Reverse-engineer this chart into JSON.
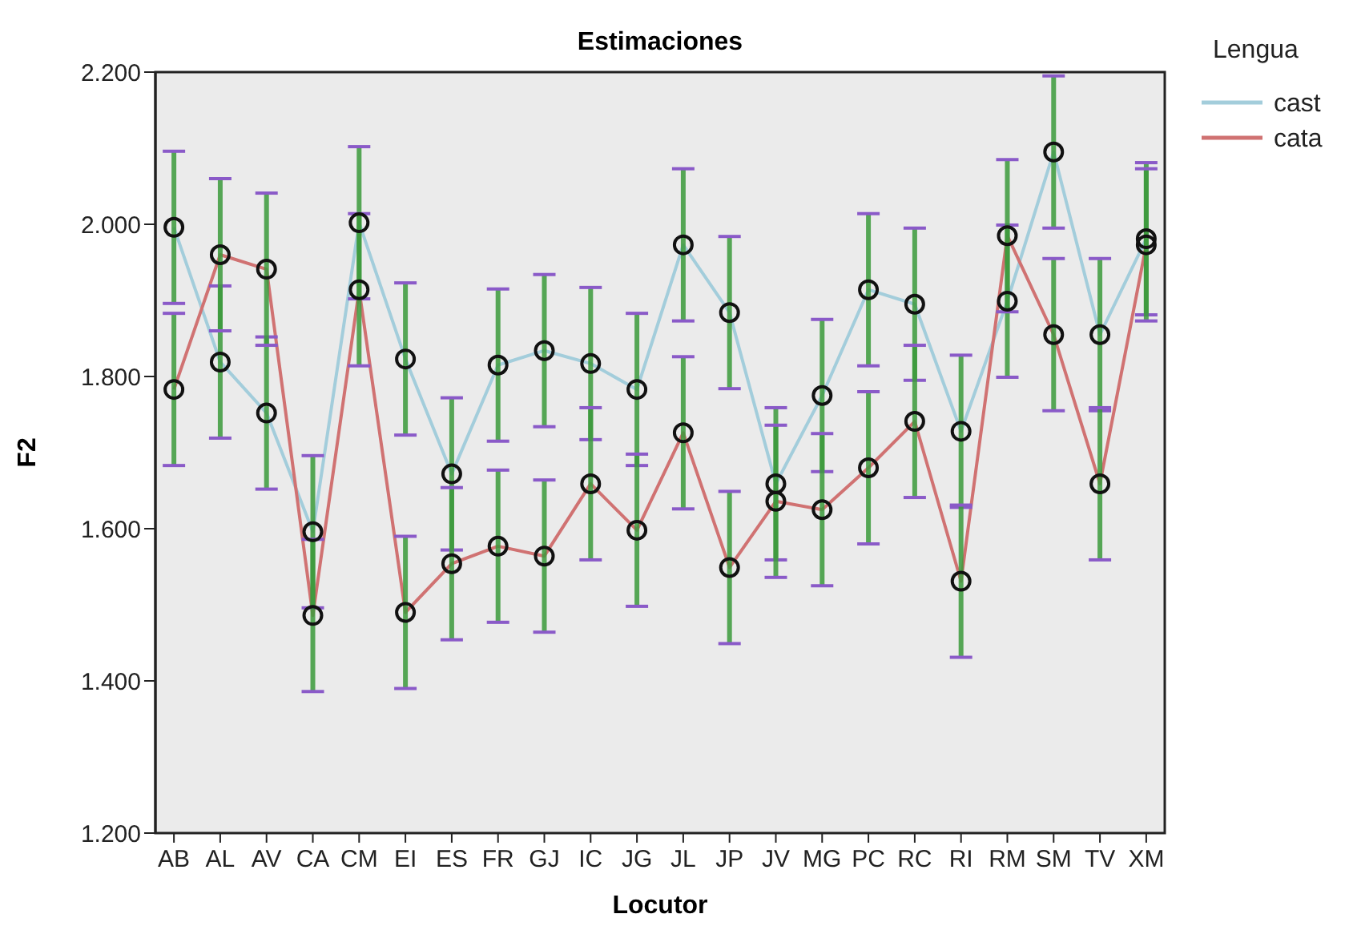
{
  "chart_data": {
    "type": "line",
    "title": "Estimaciones",
    "xlabel": "Locutor",
    "ylabel": "F2",
    "legend_title": "Lengua",
    "categories": [
      "AB",
      "AL",
      "AV",
      "CA",
      "CM",
      "EI",
      "ES",
      "FR",
      "GJ",
      "IC",
      "JG",
      "JL",
      "JP",
      "JV",
      "MG",
      "PC",
      "RC",
      "RI",
      "RM",
      "SM",
      "TV",
      "XM"
    ],
    "series": [
      {
        "name": "cast",
        "color": "#a3cddb",
        "values": [
          1.996,
          1.819,
          1.752,
          1.596,
          2.002,
          1.823,
          1.672,
          1.815,
          1.834,
          1.817,
          1.783,
          1.973,
          1.884,
          1.659,
          1.775,
          1.914,
          1.895,
          1.728,
          1.899,
          2.095,
          1.855,
          1.981
        ],
        "errors": [
          0.1,
          0.1,
          0.1,
          0.1,
          0.1,
          0.1,
          0.1,
          0.1,
          0.1,
          0.1,
          0.1,
          0.1,
          0.1,
          0.1,
          0.1,
          0.1,
          0.1,
          0.1,
          0.1,
          0.1,
          0.1,
          0.1
        ]
      },
      {
        "name": "cata",
        "color": "#d07272",
        "values": [
          1.783,
          1.96,
          1.941,
          1.486,
          1.914,
          1.49,
          1.554,
          1.577,
          1.564,
          1.659,
          1.598,
          1.726,
          1.549,
          1.636,
          1.625,
          1.68,
          1.741,
          1.531,
          1.985,
          1.855,
          1.659,
          1.973
        ],
        "errors": [
          0.1,
          0.1,
          0.1,
          0.1,
          0.1,
          0.1,
          0.1,
          0.1,
          0.1,
          0.1,
          0.1,
          0.1,
          0.1,
          0.1,
          0.1,
          0.1,
          0.1,
          0.1,
          0.1,
          0.1,
          0.1,
          0.1
        ]
      }
    ],
    "ylim": [
      1.2,
      2.2
    ],
    "yticks": [
      {
        "value": 1.2,
        "label": "1.200"
      },
      {
        "value": 1.4,
        "label": "1.400"
      },
      {
        "value": 1.6,
        "label": "1.600"
      },
      {
        "value": 1.8,
        "label": "1.800"
      },
      {
        "value": 2.0,
        "label": "2.000"
      },
      {
        "value": 2.2,
        "label": "2.200"
      }
    ],
    "marker": "circle",
    "line_style": "solid",
    "legend": "top right",
    "grid": false
  }
}
